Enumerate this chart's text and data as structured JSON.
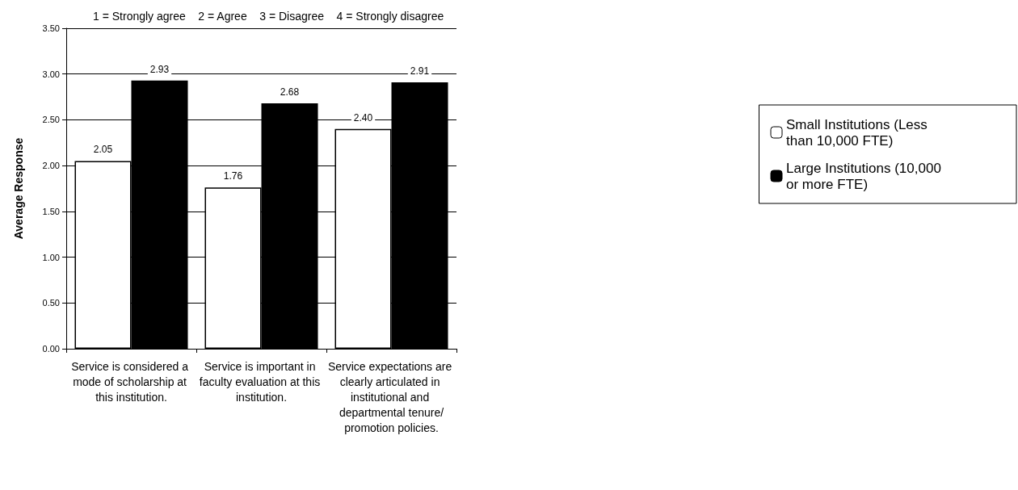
{
  "chart_data": {
    "type": "bar",
    "title": "1 = Strongly agree    2 = Agree    3 = Disagree    4 = Strongly disagree",
    "ylabel": "Average Response",
    "categories": [
      "Service is considered a mode of scholarship at this institution.",
      "Service is important in faculty evaluation at this institution.",
      "Service expectations are clearly articulated in institutional and departmental tenure/promotion policies."
    ],
    "series": [
      {
        "name": "Small Institutions (Less than 10,000 FTE)",
        "color": "#ffffff",
        "values": [
          2.05,
          1.76,
          2.4
        ],
        "value_labels": [
          "2.05",
          "1.76",
          "2.40"
        ]
      },
      {
        "name": "Large Institutions (10,000 or more FTE)",
        "color": "#000000",
        "values": [
          2.93,
          2.68,
          2.91
        ],
        "value_labels": [
          "2.93",
          "2.68",
          "2.91"
        ]
      }
    ],
    "ylim": [
      0,
      3.5
    ],
    "yticks": [
      {
        "value": 0,
        "label": "0.00"
      },
      {
        "value": 0.5,
        "label": "0.50"
      },
      {
        "value": 1,
        "label": "1.00"
      },
      {
        "value": 1.5,
        "label": "1.50"
      },
      {
        "value": 2,
        "label": "2.00"
      },
      {
        "value": 2.5,
        "label": "2.50"
      },
      {
        "value": 3,
        "label": "3.00"
      },
      {
        "value": 3.5,
        "label": "3.50"
      }
    ],
    "grid": "y",
    "legend": "right"
  }
}
